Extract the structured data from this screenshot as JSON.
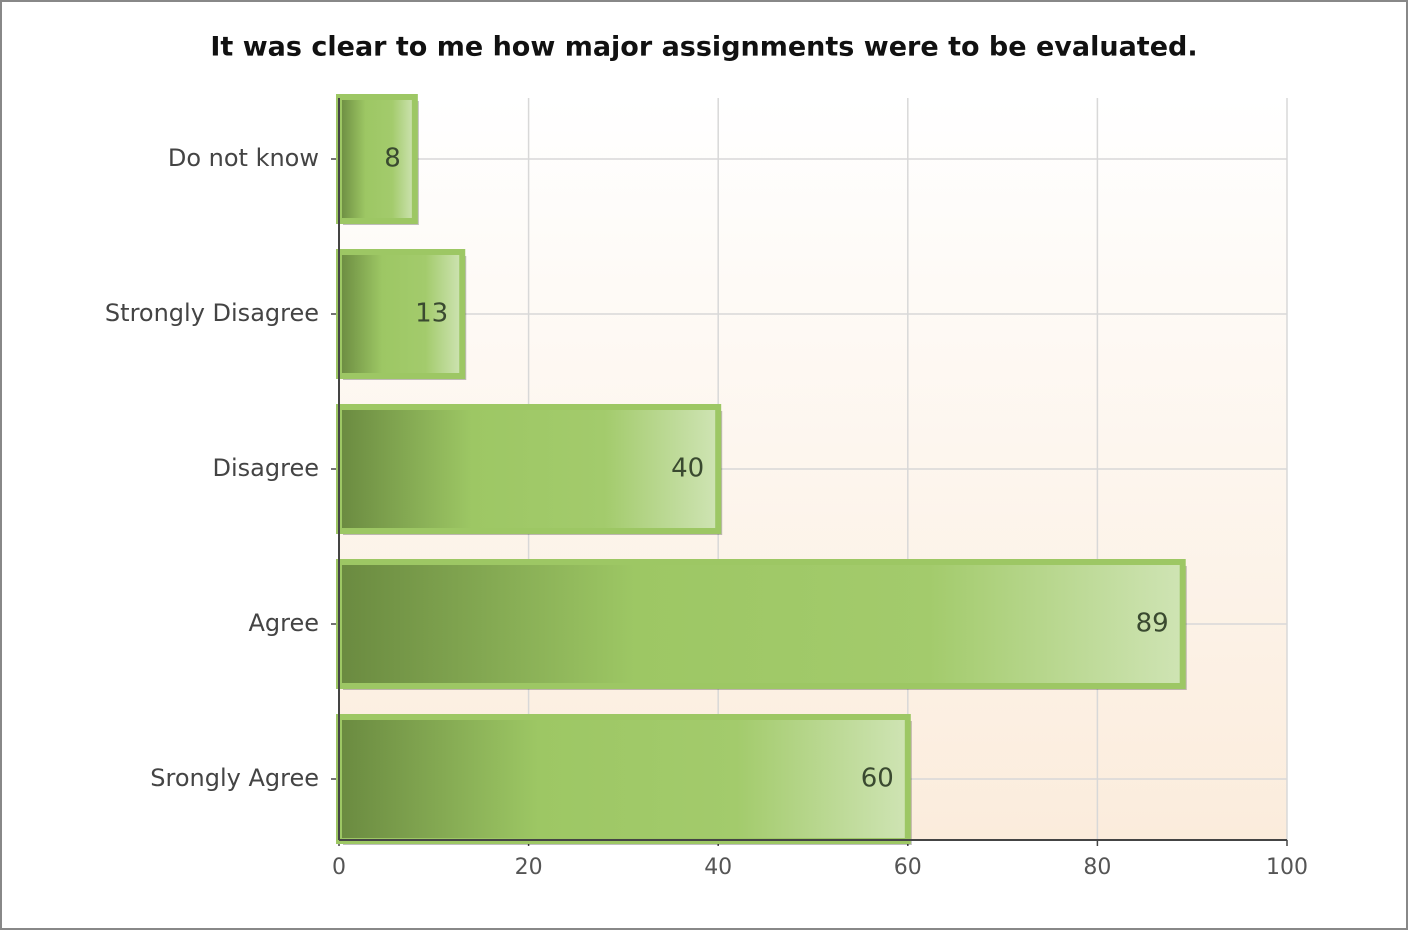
{
  "chart_data": {
    "type": "bar",
    "orientation": "horizontal",
    "title": "It was clear to me how major assignments were to be evaluated.",
    "categories": [
      "Do not know",
      "Strongly Disagree",
      "Disagree",
      "Agree",
      "Srongly Agree"
    ],
    "values": [
      8,
      13,
      40,
      89,
      60
    ],
    "color": "#9dc764",
    "xlim": [
      0,
      100
    ],
    "xticks": [
      0,
      20,
      40,
      60,
      80,
      100
    ],
    "grid": true
  }
}
